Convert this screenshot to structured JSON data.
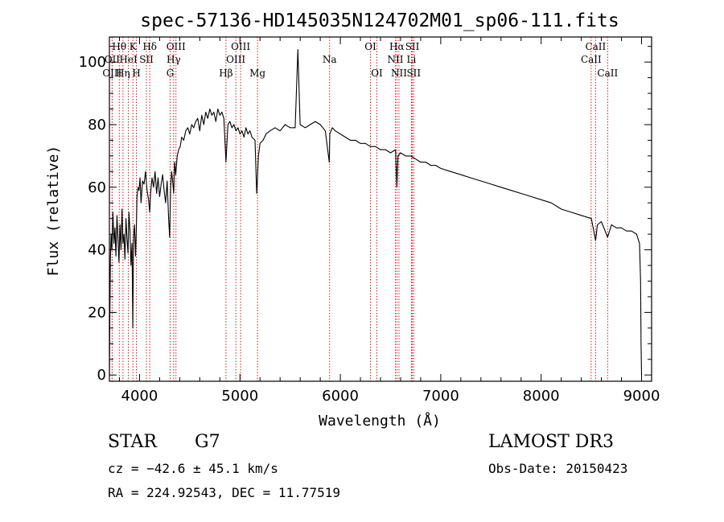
{
  "chart_data": {
    "type": "line",
    "title": "spec-57136-HD145035N124702M01_sp06-111.fits",
    "xlabel": "Wavelength (Å)",
    "ylabel": "Flux (relative)",
    "xlim": [
      3700,
      9100
    ],
    "ylim": [
      -2,
      108
    ],
    "xticks": [
      4000,
      5000,
      6000,
      7000,
      8000,
      9000
    ],
    "yticks": [
      0,
      20,
      40,
      60,
      80,
      100
    ],
    "series": [
      {
        "name": "flux",
        "x": [
          3700,
          3705,
          3710,
          3718,
          3725,
          3735,
          3745,
          3755,
          3765,
          3775,
          3785,
          3795,
          3805,
          3815,
          3825,
          3835,
          3845,
          3855,
          3865,
          3875,
          3885,
          3895,
          3905,
          3915,
          3925,
          3933,
          3940,
          3950,
          3960,
          3968,
          3975,
          3985,
          3995,
          4005,
          4015,
          4030,
          4045,
          4060,
          4075,
          4090,
          4101,
          4110,
          4125,
          4140,
          4155,
          4170,
          4185,
          4200,
          4215,
          4230,
          4245,
          4260,
          4275,
          4290,
          4300,
          4310,
          4320,
          4330,
          4340,
          4350,
          4360,
          4375,
          4390,
          4405,
          4420,
          4440,
          4460,
          4480,
          4500,
          4520,
          4540,
          4560,
          4580,
          4600,
          4620,
          4640,
          4660,
          4680,
          4700,
          4720,
          4740,
          4760,
          4780,
          4800,
          4820,
          4840,
          4861,
          4880,
          4900,
          4920,
          4940,
          4960,
          4980,
          5000,
          5020,
          5040,
          5060,
          5080,
          5100,
          5120,
          5150,
          5167,
          5173,
          5184,
          5200,
          5230,
          5260,
          5300,
          5350,
          5400,
          5450,
          5500,
          5550,
          5577,
          5600,
          5650,
          5700,
          5750,
          5800,
          5850,
          5890,
          5895,
          5920,
          5950,
          6000,
          6050,
          6100,
          6150,
          6200,
          6250,
          6300,
          6350,
          6400,
          6450,
          6500,
          6550,
          6563,
          6575,
          6600,
          6650,
          6700,
          6750,
          6800,
          6850,
          6900,
          6950,
          7000,
          7100,
          7200,
          7300,
          7400,
          7500,
          7600,
          7700,
          7800,
          7900,
          8000,
          8100,
          8200,
          8300,
          8400,
          8500,
          8542,
          8560,
          8600,
          8662,
          8700,
          8750,
          8800,
          8850,
          8900,
          8950,
          8980,
          8990,
          8995,
          9000
        ],
        "values": [
          0,
          20,
          37,
          45,
          40,
          52,
          42,
          47,
          38,
          51,
          44,
          36,
          48,
          40,
          53,
          42,
          45,
          37,
          50,
          44,
          39,
          52,
          46,
          35,
          42,
          15,
          44,
          48,
          38,
          47,
          57,
          60,
          59,
          63,
          55,
          62,
          61,
          65,
          59,
          56,
          52,
          58,
          63,
          60,
          65,
          58,
          63,
          57,
          61,
          64,
          59,
          55,
          62,
          50,
          44,
          60,
          65,
          62,
          58,
          68,
          64,
          70,
          72,
          73,
          76,
          75,
          78,
          79,
          77,
          80,
          79,
          81,
          82,
          78,
          83,
          80,
          84,
          82,
          85,
          83,
          84,
          81,
          85,
          83,
          84,
          82,
          68,
          80,
          81,
          79,
          80,
          78,
          79,
          77,
          78,
          76,
          79,
          77,
          78,
          76,
          75,
          58,
          62,
          70,
          74,
          75,
          77,
          78,
          79,
          78,
          80,
          79,
          79,
          104,
          80,
          79,
          80,
          81,
          80,
          78,
          68,
          77,
          79,
          78,
          77,
          76,
          75,
          75,
          74,
          74,
          73,
          73,
          72,
          72,
          71,
          72,
          60,
          70,
          71,
          70,
          70,
          69,
          68,
          68,
          67,
          67,
          66,
          65,
          64,
          63,
          62,
          61,
          60,
          59,
          58,
          57,
          56,
          55,
          53,
          52,
          51,
          50,
          43,
          48,
          49,
          44,
          48,
          47,
          47,
          46,
          46,
          45,
          42,
          30,
          10,
          0
        ]
      }
    ],
    "spectral_lines": [
      {
        "label": "Hθ",
        "x": 3798,
        "row": 1
      },
      {
        "label": "OII",
        "x": 3727,
        "row": 2
      },
      {
        "label": "OIII",
        "x": 3727,
        "row": 3
      },
      {
        "label": "K",
        "x": 3934,
        "row": 1
      },
      {
        "label": "HeI",
        "x": 3889,
        "row": 2
      },
      {
        "label": "Hη",
        "x": 3835,
        "row": 3
      },
      {
        "label": "SII",
        "x": 4069,
        "row": 2
      },
      {
        "label": "H",
        "x": 3969,
        "row": 3
      },
      {
        "label": "Hδ",
        "x": 4102,
        "row": 1
      },
      {
        "label": "OIII",
        "x": 4363,
        "row": 1
      },
      {
        "label": "Hγ",
        "x": 4340,
        "row": 2
      },
      {
        "label": "G",
        "x": 4305,
        "row": 3
      },
      {
        "label": "Hβ",
        "x": 4861,
        "row": 3
      },
      {
        "label": "OIII",
        "x": 5007,
        "row": 1
      },
      {
        "label": "OIII",
        "x": 4959,
        "row": 2
      },
      {
        "label": "Mg",
        "x": 5175,
        "row": 3
      },
      {
        "label": "Na",
        "x": 5893,
        "row": 2
      },
      {
        "label": "OI",
        "x": 6300,
        "row": 1
      },
      {
        "label": "OI",
        "x": 6364,
        "row": 3
      },
      {
        "label": "Hα",
        "x": 6563,
        "row": 1
      },
      {
        "label": "SII",
        "x": 6717,
        "row": 1
      },
      {
        "label": "NII",
        "x": 6548,
        "row": 2
      },
      {
        "label": "Li",
        "x": 6708,
        "row": 2
      },
      {
        "label": "NII",
        "x": 6584,
        "row": 3
      },
      {
        "label": "SII",
        "x": 6731,
        "row": 3
      },
      {
        "label": "CaII",
        "x": 8542,
        "row": 1
      },
      {
        "label": "CaII",
        "x": 8498,
        "row": 2
      },
      {
        "label": "CaII",
        "x": 8662,
        "row": 3
      }
    ],
    "spectral_line_color": "#cc0000",
    "grid": false
  },
  "info": {
    "object_class": "STAR",
    "subclass": "G7",
    "survey": "LAMOST DR3",
    "redshift": "cz = −42.6 ± 45.1 km/s",
    "obs_date": "Obs-Date: 20150423",
    "coords": "RA = 224.92543, DEC =  11.77519"
  }
}
